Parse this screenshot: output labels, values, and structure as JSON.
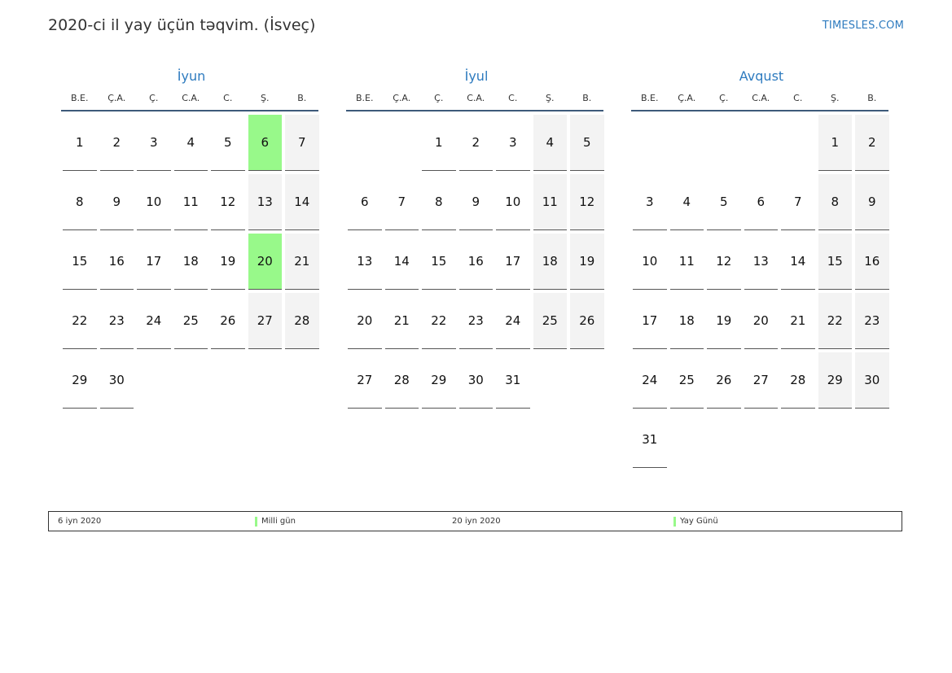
{
  "header": {
    "title": "2020-ci il yay üçün təqvim. (İsveç)",
    "site": "TIMESLES.COM"
  },
  "weekdays": [
    "B.E.",
    "Ç.A.",
    "Ç.",
    "C.A.",
    "C.",
    "Ş.",
    "B."
  ],
  "colors": {
    "accent": "#2e7bbf",
    "holiday": "#98f98a",
    "weekend": "#f3f3f3"
  },
  "months": [
    {
      "name": "İyun",
      "offset": 0,
      "days": 30,
      "holidays": [
        6,
        20
      ]
    },
    {
      "name": "İyul",
      "offset": 2,
      "days": 31,
      "holidays": []
    },
    {
      "name": "Avqust",
      "offset": 5,
      "days": 31,
      "holidays": []
    }
  ],
  "legend": [
    {
      "date": "6 iyn 2020",
      "name": "Milli gün"
    },
    {
      "date": "20 iyn 2020",
      "name": "Yay Günü"
    }
  ]
}
